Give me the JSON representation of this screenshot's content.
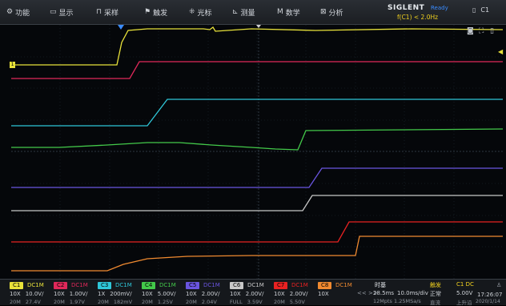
{
  "menu": [
    {
      "icon": "⚙",
      "label": "功能",
      "name": "menu-function"
    },
    {
      "icon": "▭",
      "label": "显示",
      "name": "menu-display"
    },
    {
      "icon": "⊓",
      "label": "采样",
      "name": "menu-acquire"
    },
    {
      "icon": "⚑",
      "label": "触发",
      "name": "menu-trigger"
    },
    {
      "icon": "⁜",
      "label": "光标",
      "name": "menu-cursor"
    },
    {
      "icon": "⊾",
      "label": "测量",
      "name": "menu-measure"
    },
    {
      "icon": "M",
      "label": "数学",
      "name": "menu-math"
    },
    {
      "icon": "⊠",
      "label": "分析",
      "name": "menu-analysis"
    }
  ],
  "brand": {
    "name": "SIGLENT",
    "state": "Ready",
    "trigger": "f(C1) < 2.0Hz"
  },
  "channel_select": {
    "icon": "▯",
    "label": "C1"
  },
  "colors": {
    "C1": "#e8e23a",
    "C2": "#e0285a",
    "C3": "#2fc6d8",
    "C4": "#43c94a",
    "C5": "#6a55e0",
    "C6": "#c8c8c8",
    "C7": "#e82222",
    "C8": "#f08a30"
  },
  "channels": [
    {
      "tag": "C1",
      "coupling": "DC1M",
      "probe": "10X",
      "scale": "10.0V/",
      "bw": "20M",
      "offset": "27.4V",
      "color": "#e8e23a"
    },
    {
      "tag": "C2",
      "coupling": "DC1M",
      "probe": "10X",
      "scale": "1.00V/",
      "bw": "20M",
      "offset": "1.97V",
      "color": "#e0285a"
    },
    {
      "tag": "C3",
      "coupling": "DC1M",
      "probe": "1X",
      "scale": "200mV/",
      "bw": "20M",
      "offset": "182mV",
      "color": "#2fc6d8"
    },
    {
      "tag": "C4",
      "coupling": "DC1M",
      "probe": "10X",
      "scale": "5.00V/",
      "bw": "20M",
      "offset": "1.25V",
      "color": "#43c94a"
    },
    {
      "tag": "C5",
      "coupling": "DC1M",
      "probe": "10X",
      "scale": "2.00V/",
      "bw": "20M",
      "offset": "2.04V",
      "color": "#6a55e0"
    },
    {
      "tag": "C6",
      "coupling": "DC1M",
      "probe": "10X",
      "scale": "2.00V/",
      "bw": "FULL",
      "offset": "3.59V",
      "color": "#c8c8c8"
    },
    {
      "tag": "C7",
      "coupling": "DC1M",
      "probe": "10X",
      "scale": "2.00V/",
      "bw": "20M",
      "offset": "5.50V",
      "color": "#e82222"
    },
    {
      "tag": "C8",
      "coupling": "DC1M",
      "probe": "10X",
      "scale": "",
      "bw": "",
      "offset": "",
      "color": "#f08a30"
    }
  ],
  "timebase": {
    "label": "时基",
    "arrows": "<< >>",
    "delay": "28.5ms",
    "scale": "10.0ms/div",
    "sample_info": "12Mpts  1.25MSa/s"
  },
  "trigger": {
    "label": "触发",
    "mode": "正常",
    "coupling": "直流",
    "source": "C1 DC",
    "level": "5.00V",
    "slope": "上升沿"
  },
  "clock": {
    "time": "17:26:07",
    "date": "2020/1/14"
  },
  "markers": {
    "left": "1",
    "right": "◀"
  }
}
